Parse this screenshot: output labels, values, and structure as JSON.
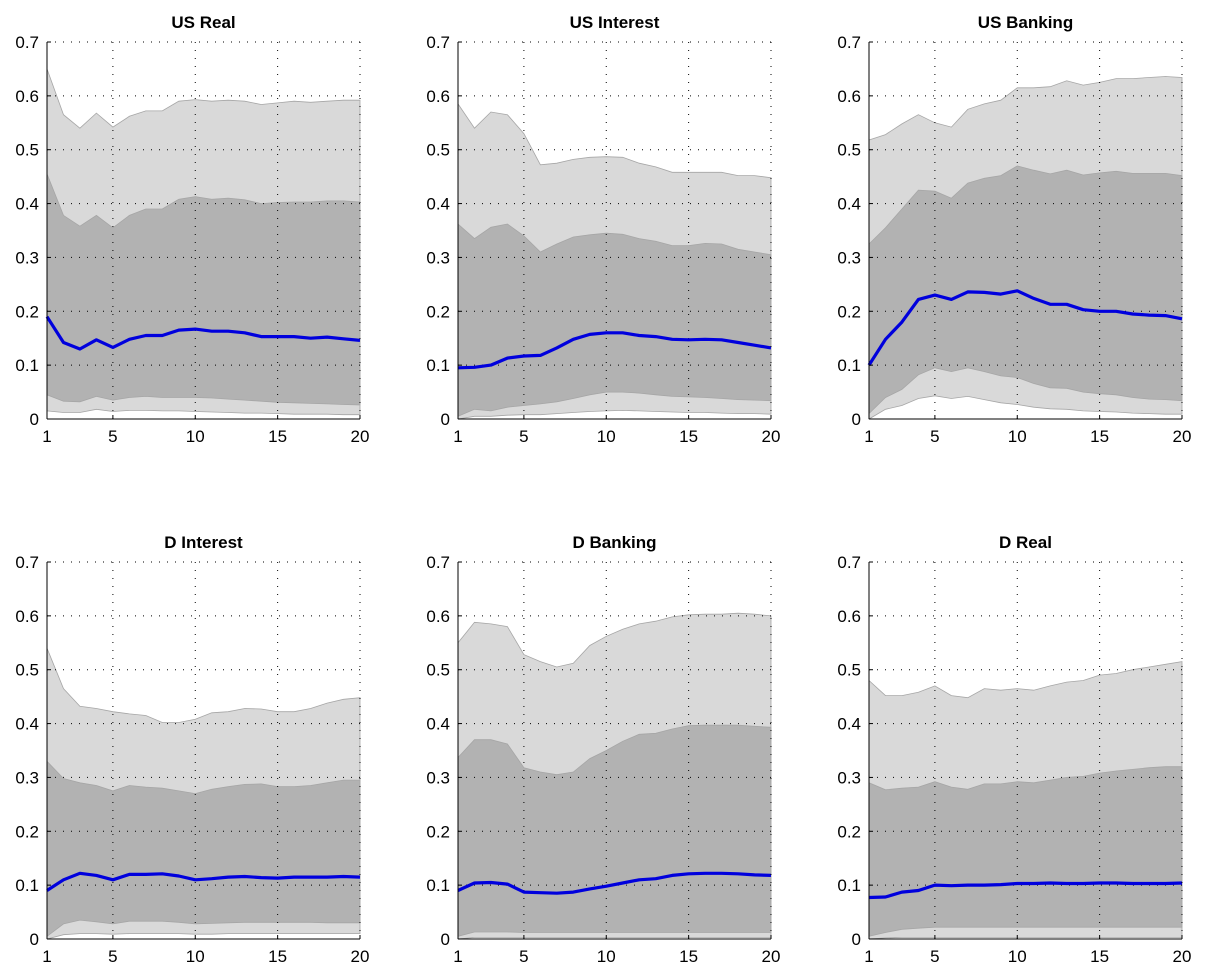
{
  "colors": {
    "outer_band": "#d9d9d9",
    "inner_band": "#b2b2b2",
    "band_edge": "#a6a6a6",
    "median_line": "#0000dd",
    "grid": "#000000",
    "axis": "#000000"
  },
  "chart_data": [
    {
      "type": "area",
      "title": "US Real",
      "xlabel": "",
      "ylabel": "",
      "x": [
        1,
        2,
        3,
        4,
        5,
        6,
        7,
        8,
        9,
        10,
        11,
        12,
        13,
        14,
        15,
        16,
        17,
        18,
        19,
        20
      ],
      "xlim": [
        1,
        20
      ],
      "ylim": [
        0,
        0.7
      ],
      "xticks": [
        1,
        5,
        10,
        15,
        20
      ],
      "yticks": [
        0,
        0.1,
        0.2,
        0.3,
        0.4,
        0.5,
        0.6,
        0.7
      ],
      "grid": true,
      "series": [
        {
          "role": "outer_upper",
          "values": [
            0.65,
            0.565,
            0.54,
            0.568,
            0.542,
            0.562,
            0.572,
            0.572,
            0.59,
            0.593,
            0.59,
            0.592,
            0.59,
            0.584,
            0.587,
            0.59,
            0.588,
            0.59,
            0.592,
            0.592
          ]
        },
        {
          "role": "inner_upper",
          "values": [
            0.455,
            0.378,
            0.358,
            0.378,
            0.355,
            0.378,
            0.39,
            0.39,
            0.408,
            0.413,
            0.408,
            0.41,
            0.407,
            0.4,
            0.402,
            0.403,
            0.403,
            0.405,
            0.405,
            0.403
          ]
        },
        {
          "role": "median",
          "values": [
            0.19,
            0.142,
            0.13,
            0.147,
            0.133,
            0.148,
            0.155,
            0.155,
            0.165,
            0.167,
            0.163,
            0.163,
            0.16,
            0.153,
            0.153,
            0.153,
            0.15,
            0.152,
            0.149,
            0.146
          ]
        },
        {
          "role": "inner_lower",
          "values": [
            0.045,
            0.033,
            0.032,
            0.042,
            0.035,
            0.04,
            0.042,
            0.04,
            0.04,
            0.04,
            0.039,
            0.037,
            0.035,
            0.033,
            0.031,
            0.03,
            0.029,
            0.028,
            0.027,
            0.026
          ]
        },
        {
          "role": "outer_lower",
          "values": [
            0.015,
            0.012,
            0.012,
            0.018,
            0.014,
            0.016,
            0.016,
            0.015,
            0.015,
            0.014,
            0.013,
            0.012,
            0.011,
            0.011,
            0.01,
            0.009,
            0.009,
            0.009,
            0.008,
            0.008
          ]
        }
      ]
    },
    {
      "type": "area",
      "title": "US Interest",
      "xlabel": "",
      "ylabel": "",
      "x": [
        1,
        2,
        3,
        4,
        5,
        6,
        7,
        8,
        9,
        10,
        11,
        12,
        13,
        14,
        15,
        16,
        17,
        18,
        19,
        20
      ],
      "xlim": [
        1,
        20
      ],
      "ylim": [
        0,
        0.7
      ],
      "xticks": [
        1,
        5,
        10,
        15,
        20
      ],
      "yticks": [
        0,
        0.1,
        0.2,
        0.3,
        0.4,
        0.5,
        0.6,
        0.7
      ],
      "grid": true,
      "series": [
        {
          "role": "outer_upper",
          "values": [
            0.585,
            0.54,
            0.57,
            0.565,
            0.53,
            0.472,
            0.475,
            0.482,
            0.486,
            0.487,
            0.486,
            0.475,
            0.468,
            0.458,
            0.458,
            0.458,
            0.458,
            0.452,
            0.452,
            0.448
          ]
        },
        {
          "role": "inner_upper",
          "values": [
            0.362,
            0.335,
            0.356,
            0.362,
            0.34,
            0.31,
            0.325,
            0.338,
            0.342,
            0.345,
            0.343,
            0.335,
            0.33,
            0.322,
            0.322,
            0.326,
            0.325,
            0.315,
            0.31,
            0.305
          ]
        },
        {
          "role": "median",
          "values": [
            0.095,
            0.096,
            0.1,
            0.113,
            0.117,
            0.118,
            0.132,
            0.148,
            0.157,
            0.16,
            0.16,
            0.155,
            0.153,
            0.148,
            0.147,
            0.148,
            0.147,
            0.142,
            0.137,
            0.132
          ]
        },
        {
          "role": "inner_lower",
          "values": [
            0.005,
            0.018,
            0.015,
            0.022,
            0.025,
            0.028,
            0.032,
            0.038,
            0.045,
            0.05,
            0.05,
            0.048,
            0.045,
            0.042,
            0.041,
            0.04,
            0.038,
            0.036,
            0.035,
            0.034
          ]
        },
        {
          "role": "outer_lower",
          "values": [
            0.0,
            0.005,
            0.005,
            0.007,
            0.008,
            0.008,
            0.01,
            0.012,
            0.014,
            0.015,
            0.016,
            0.015,
            0.014,
            0.013,
            0.012,
            0.012,
            0.011,
            0.01,
            0.01,
            0.009
          ]
        }
      ]
    },
    {
      "type": "area",
      "title": "US Banking",
      "xlabel": "",
      "ylabel": "",
      "x": [
        1,
        2,
        3,
        4,
        5,
        6,
        7,
        8,
        9,
        10,
        11,
        12,
        13,
        14,
        15,
        16,
        17,
        18,
        19,
        20
      ],
      "xlim": [
        1,
        20
      ],
      "ylim": [
        0,
        0.7
      ],
      "xticks": [
        1,
        5,
        10,
        15,
        20
      ],
      "yticks": [
        0,
        0.1,
        0.2,
        0.3,
        0.4,
        0.5,
        0.6,
        0.7
      ],
      "grid": true,
      "series": [
        {
          "role": "outer_upper",
          "values": [
            0.518,
            0.528,
            0.548,
            0.565,
            0.55,
            0.542,
            0.575,
            0.585,
            0.592,
            0.615,
            0.615,
            0.617,
            0.628,
            0.62,
            0.625,
            0.632,
            0.632,
            0.634,
            0.636,
            0.634
          ]
        },
        {
          "role": "inner_upper",
          "values": [
            0.325,
            0.355,
            0.39,
            0.425,
            0.423,
            0.41,
            0.438,
            0.447,
            0.452,
            0.47,
            0.462,
            0.455,
            0.462,
            0.453,
            0.457,
            0.46,
            0.456,
            0.456,
            0.456,
            0.452
          ]
        },
        {
          "role": "median",
          "values": [
            0.1,
            0.148,
            0.18,
            0.222,
            0.23,
            0.222,
            0.236,
            0.235,
            0.232,
            0.238,
            0.224,
            0.213,
            0.213,
            0.203,
            0.2,
            0.2,
            0.195,
            0.193,
            0.192,
            0.186
          ]
        },
        {
          "role": "inner_lower",
          "values": [
            0.01,
            0.04,
            0.055,
            0.082,
            0.095,
            0.088,
            0.095,
            0.088,
            0.08,
            0.077,
            0.066,
            0.058,
            0.057,
            0.05,
            0.047,
            0.045,
            0.04,
            0.037,
            0.036,
            0.034
          ]
        },
        {
          "role": "outer_lower",
          "values": [
            0.0,
            0.018,
            0.025,
            0.038,
            0.043,
            0.038,
            0.042,
            0.036,
            0.03,
            0.027,
            0.022,
            0.019,
            0.018,
            0.015,
            0.014,
            0.013,
            0.011,
            0.01,
            0.009,
            0.009
          ]
        }
      ]
    },
    {
      "type": "area",
      "title": "D Interest",
      "xlabel": "",
      "ylabel": "",
      "x": [
        1,
        2,
        3,
        4,
        5,
        6,
        7,
        8,
        9,
        10,
        11,
        12,
        13,
        14,
        15,
        16,
        17,
        18,
        19,
        20
      ],
      "xlim": [
        1,
        20
      ],
      "ylim": [
        0,
        0.7
      ],
      "xticks": [
        1,
        5,
        10,
        15,
        20
      ],
      "yticks": [
        0,
        0.1,
        0.2,
        0.3,
        0.4,
        0.5,
        0.6,
        0.7
      ],
      "grid": true,
      "series": [
        {
          "role": "outer_upper",
          "values": [
            0.54,
            0.465,
            0.432,
            0.428,
            0.422,
            0.418,
            0.415,
            0.402,
            0.402,
            0.408,
            0.42,
            0.422,
            0.428,
            0.427,
            0.422,
            0.422,
            0.428,
            0.438,
            0.445,
            0.448
          ]
        },
        {
          "role": "inner_upper",
          "values": [
            0.33,
            0.298,
            0.29,
            0.285,
            0.275,
            0.285,
            0.282,
            0.28,
            0.275,
            0.27,
            0.278,
            0.283,
            0.287,
            0.288,
            0.283,
            0.283,
            0.285,
            0.29,
            0.295,
            0.295
          ]
        },
        {
          "role": "median",
          "values": [
            0.09,
            0.11,
            0.122,
            0.118,
            0.11,
            0.12,
            0.12,
            0.121,
            0.117,
            0.11,
            0.112,
            0.115,
            0.116,
            0.114,
            0.113,
            0.115,
            0.115,
            0.115,
            0.116,
            0.115
          ]
        },
        {
          "role": "inner_lower",
          "values": [
            0.005,
            0.028,
            0.035,
            0.032,
            0.028,
            0.033,
            0.033,
            0.033,
            0.031,
            0.028,
            0.029,
            0.03,
            0.031,
            0.031,
            0.031,
            0.031,
            0.031,
            0.03,
            0.03,
            0.03
          ]
        },
        {
          "role": "outer_lower",
          "values": [
            0.0,
            0.008,
            0.01,
            0.01,
            0.009,
            0.01,
            0.01,
            0.01,
            0.01,
            0.009,
            0.009,
            0.01,
            0.01,
            0.01,
            0.01,
            0.01,
            0.01,
            0.01,
            0.01,
            0.01
          ]
        }
      ]
    },
    {
      "type": "area",
      "title": "D Banking",
      "xlabel": "",
      "ylabel": "",
      "x": [
        1,
        2,
        3,
        4,
        5,
        6,
        7,
        8,
        9,
        10,
        11,
        12,
        13,
        14,
        15,
        16,
        17,
        18,
        19,
        20
      ],
      "xlim": [
        1,
        20
      ],
      "ylim": [
        0,
        0.7
      ],
      "xticks": [
        1,
        5,
        10,
        15,
        20
      ],
      "yticks": [
        0,
        0.1,
        0.2,
        0.3,
        0.4,
        0.5,
        0.6,
        0.7
      ],
      "grid": true,
      "series": [
        {
          "role": "outer_upper",
          "values": [
            0.55,
            0.588,
            0.585,
            0.58,
            0.528,
            0.515,
            0.505,
            0.512,
            0.545,
            0.562,
            0.575,
            0.585,
            0.59,
            0.598,
            0.602,
            0.603,
            0.603,
            0.605,
            0.603,
            0.6
          ]
        },
        {
          "role": "inner_upper",
          "values": [
            0.337,
            0.37,
            0.37,
            0.362,
            0.318,
            0.31,
            0.305,
            0.31,
            0.335,
            0.35,
            0.367,
            0.38,
            0.382,
            0.39,
            0.396,
            0.397,
            0.397,
            0.397,
            0.395,
            0.393
          ]
        },
        {
          "role": "median",
          "values": [
            0.09,
            0.104,
            0.105,
            0.102,
            0.087,
            0.086,
            0.085,
            0.087,
            0.093,
            0.098,
            0.104,
            0.11,
            0.112,
            0.118,
            0.121,
            0.122,
            0.122,
            0.121,
            0.119,
            0.118
          ]
        },
        {
          "role": "inner_lower",
          "values": [
            0.005,
            0.013,
            0.013,
            0.013,
            0.012,
            0.012,
            0.012,
            0.012,
            0.012,
            0.012,
            0.012,
            0.012,
            0.012,
            0.012,
            0.012,
            0.012,
            0.012,
            0.012,
            0.012,
            0.012
          ]
        },
        {
          "role": "outer_lower",
          "values": [
            0.0,
            0.003,
            0.003,
            0.003,
            0.003,
            0.003,
            0.003,
            0.003,
            0.003,
            0.003,
            0.003,
            0.003,
            0.003,
            0.003,
            0.003,
            0.003,
            0.003,
            0.003,
            0.003,
            0.003
          ]
        }
      ]
    },
    {
      "type": "area",
      "title": "D Real",
      "xlabel": "",
      "ylabel": "",
      "x": [
        1,
        2,
        3,
        4,
        5,
        6,
        7,
        8,
        9,
        10,
        11,
        12,
        13,
        14,
        15,
        16,
        17,
        18,
        19,
        20
      ],
      "xlim": [
        1,
        20
      ],
      "ylim": [
        0,
        0.7
      ],
      "xticks": [
        1,
        5,
        10,
        15,
        20
      ],
      "yticks": [
        0,
        0.1,
        0.2,
        0.3,
        0.4,
        0.5,
        0.6,
        0.7
      ],
      "grid": true,
      "series": [
        {
          "role": "outer_upper",
          "values": [
            0.48,
            0.452,
            0.452,
            0.458,
            0.47,
            0.452,
            0.448,
            0.465,
            0.462,
            0.465,
            0.462,
            0.47,
            0.477,
            0.48,
            0.49,
            0.493,
            0.5,
            0.505,
            0.51,
            0.515
          ]
        },
        {
          "role": "inner_upper",
          "values": [
            0.29,
            0.277,
            0.28,
            0.282,
            0.292,
            0.282,
            0.278,
            0.288,
            0.288,
            0.292,
            0.29,
            0.295,
            0.3,
            0.302,
            0.308,
            0.312,
            0.315,
            0.318,
            0.32,
            0.32
          ]
        },
        {
          "role": "median",
          "values": [
            0.077,
            0.078,
            0.087,
            0.09,
            0.1,
            0.099,
            0.1,
            0.1,
            0.101,
            0.103,
            0.103,
            0.104,
            0.103,
            0.103,
            0.104,
            0.104,
            0.103,
            0.103,
            0.103,
            0.104
          ]
        },
        {
          "role": "inner_lower",
          "values": [
            0.005,
            0.012,
            0.018,
            0.02,
            0.022,
            0.022,
            0.022,
            0.022,
            0.022,
            0.022,
            0.022,
            0.022,
            0.022,
            0.022,
            0.022,
            0.022,
            0.022,
            0.022,
            0.022,
            0.022
          ]
        },
        {
          "role": "outer_lower",
          "values": [
            0.0,
            0.002,
            0.003,
            0.003,
            0.003,
            0.003,
            0.003,
            0.003,
            0.003,
            0.003,
            0.003,
            0.003,
            0.003,
            0.003,
            0.003,
            0.003,
            0.003,
            0.003,
            0.003,
            0.003
          ]
        }
      ]
    }
  ]
}
